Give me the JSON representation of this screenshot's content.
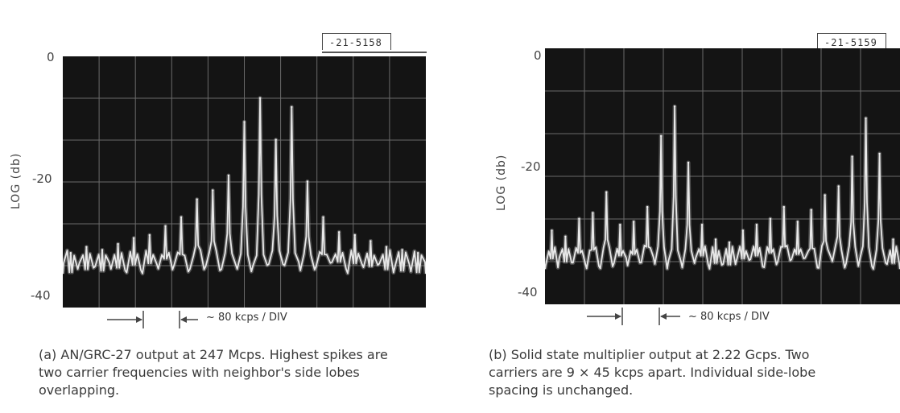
{
  "chart_data": [
    {
      "type": "line",
      "figure_id": "-21-5158",
      "ylabel": "LOG (db)",
      "y_ticks": [
        "0",
        "-20",
        "-40"
      ],
      "ylim": [
        -40,
        0
      ],
      "x_divisions": 10,
      "y_divisions": 6,
      "grid": true,
      "scale_label": "~ 80 kcps / DIV",
      "caption": "(a) AN/GRC-27 output at 247 Mcps.  Highest spikes are two carrier frequencies with neighbor's side lobes overlapping.",
      "series": [
        {
          "values": [
            -33,
            -32,
            -32.5,
            -31.5,
            -30.5,
            -30,
            -28.5,
            -27,
            -24,
            -22.5,
            -20,
            -11,
            -7,
            -14,
            -8.5,
            -21,
            -27,
            -29.5,
            -30,
            -31,
            -32,
            -32.5,
            -33
          ]
        }
      ]
    },
    {
      "type": "line",
      "figure_id": "-21-5159",
      "ylabel": "LOG (db)",
      "y_ticks": [
        "0",
        "-20",
        "-40"
      ],
      "ylim": [
        -40,
        0
      ],
      "x_divisions": 9,
      "y_divisions": 6,
      "grid": true,
      "scale_label": "~ 80 kcps / DIV",
      "caption": "(b) Solid state multiplier output at 2.22 Gcps.  Two carriers are 9 × 45 kcps apart.  Individual side-lobe spacing is unchanged.",
      "series": [
        {
          "values": [
            -30,
            -31,
            -28,
            -27,
            -23.5,
            -29,
            -28.5,
            -26,
            -14,
            -9,
            -18.5,
            -29,
            -31.5,
            -32,
            -30,
            -29,
            -28,
            -26,
            -28.5,
            -26.5,
            -24,
            -22.5,
            -17.5,
            -11,
            -17,
            -31.5
          ]
        }
      ]
    }
  ]
}
